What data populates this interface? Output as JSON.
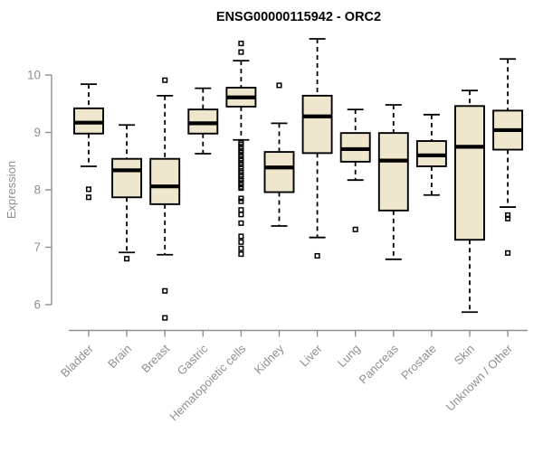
{
  "chart_data": {
    "type": "boxplot",
    "title": "ENSG00000115942 - ORC2",
    "ylabel": "Expression",
    "xlabel": "",
    "yticks": [
      6,
      7,
      8,
      9,
      10
    ],
    "ylim": [
      5.5,
      10.75
    ],
    "grid": false,
    "legend": null,
    "categories": [
      "Bladder",
      "Brain",
      "Breast",
      "Gastric",
      "Hematopoietic cells",
      "Kidney",
      "Liver",
      "Lung",
      "Pancreas",
      "Prostate",
      "Skin",
      "Unknown / Other"
    ],
    "boxes": [
      {
        "category": "Bladder",
        "whisker_low": 8.41,
        "q1": 8.98,
        "median": 9.17,
        "q3": 9.42,
        "whisker_high": 9.84,
        "outliers": [
          8.01,
          7.87
        ]
      },
      {
        "category": "Brain",
        "whisker_low": 6.91,
        "q1": 7.87,
        "median": 8.34,
        "q3": 8.54,
        "whisker_high": 9.13,
        "outliers": [
          6.8
        ]
      },
      {
        "category": "Breast",
        "whisker_low": 6.87,
        "q1": 7.75,
        "median": 8.06,
        "q3": 8.54,
        "whisker_high": 9.64,
        "outliers": [
          9.91,
          6.24,
          5.77
        ]
      },
      {
        "category": "Gastric",
        "whisker_low": 8.63,
        "q1": 8.98,
        "median": 9.16,
        "q3": 9.4,
        "whisker_high": 9.77,
        "outliers": []
      },
      {
        "category": "Hematopoietic cells",
        "whisker_low": 8.87,
        "q1": 9.45,
        "median": 9.61,
        "q3": 9.78,
        "whisker_high": 10.25,
        "outliers": [
          10.55,
          10.4,
          8.82,
          8.79,
          8.75,
          8.72,
          8.68,
          8.65,
          8.61,
          8.58,
          8.54,
          8.51,
          8.47,
          8.44,
          8.4,
          8.37,
          8.33,
          8.3,
          8.26,
          8.23,
          8.19,
          8.16,
          8.12,
          8.09,
          8.05,
          8.03,
          7.85,
          7.8,
          7.65,
          7.57,
          7.42,
          7.19,
          7.09,
          6.98,
          6.88
        ]
      },
      {
        "category": "Kidney",
        "whisker_low": 7.37,
        "q1": 7.96,
        "median": 8.39,
        "q3": 8.66,
        "whisker_high": 9.16,
        "outliers": [
          9.82
        ]
      },
      {
        "category": "Liver",
        "whisker_low": 7.17,
        "q1": 8.64,
        "median": 9.28,
        "q3": 9.64,
        "whisker_high": 10.63,
        "outliers": [
          6.85
        ]
      },
      {
        "category": "Lung",
        "whisker_low": 8.17,
        "q1": 8.49,
        "median": 8.71,
        "q3": 8.99,
        "whisker_high": 9.4,
        "outliers": [
          7.31
        ]
      },
      {
        "category": "Pancreas",
        "whisker_low": 6.79,
        "q1": 7.64,
        "median": 8.51,
        "q3": 8.99,
        "whisker_high": 9.48,
        "outliers": []
      },
      {
        "category": "Prostate",
        "whisker_low": 7.91,
        "q1": 8.41,
        "median": 8.6,
        "q3": 8.85,
        "whisker_high": 9.31,
        "outliers": []
      },
      {
        "category": "Skin",
        "whisker_low": 5.87,
        "q1": 7.13,
        "median": 8.75,
        "q3": 9.46,
        "whisker_high": 9.73,
        "outliers": []
      },
      {
        "category": "Unknown / Other",
        "whisker_low": 7.7,
        "q1": 8.7,
        "median": 9.04,
        "q3": 9.38,
        "whisker_high": 10.28,
        "outliers": [
          7.56,
          7.5,
          6.9
        ]
      }
    ],
    "colors": {
      "box_fill": "#EEE7CD",
      "box_stroke": "#000000",
      "median": "#000000",
      "whisker": "#000000",
      "outlier_stroke": "#000000",
      "axis": "#8f8f8f",
      "tick_text": "#8f8f8f",
      "title_text": "#000000",
      "background": "#FFFFFF"
    }
  }
}
